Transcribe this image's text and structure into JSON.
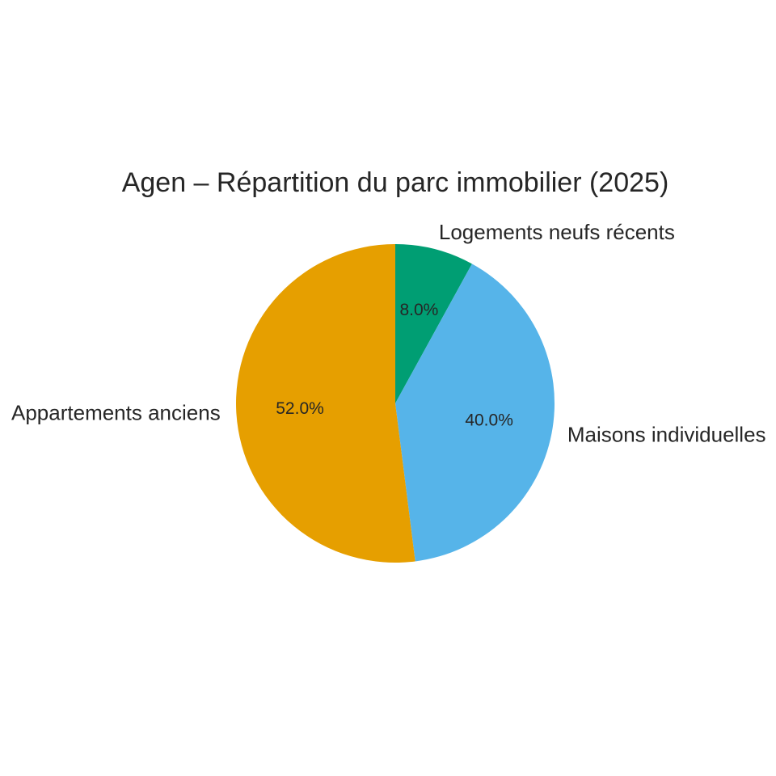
{
  "chart_data": {
    "type": "pie",
    "title": "Agen – Répartition du parc immobilier (2025)",
    "categories": [
      "Logements neufs récents",
      "Maisons individuelles",
      "Appartements anciens"
    ],
    "values": [
      8,
      40,
      52
    ],
    "value_labels": [
      "8.0%",
      "40.0%",
      "52.0%"
    ],
    "colors": [
      "#009e73",
      "#56b4e9",
      "#e69f00"
    ]
  }
}
